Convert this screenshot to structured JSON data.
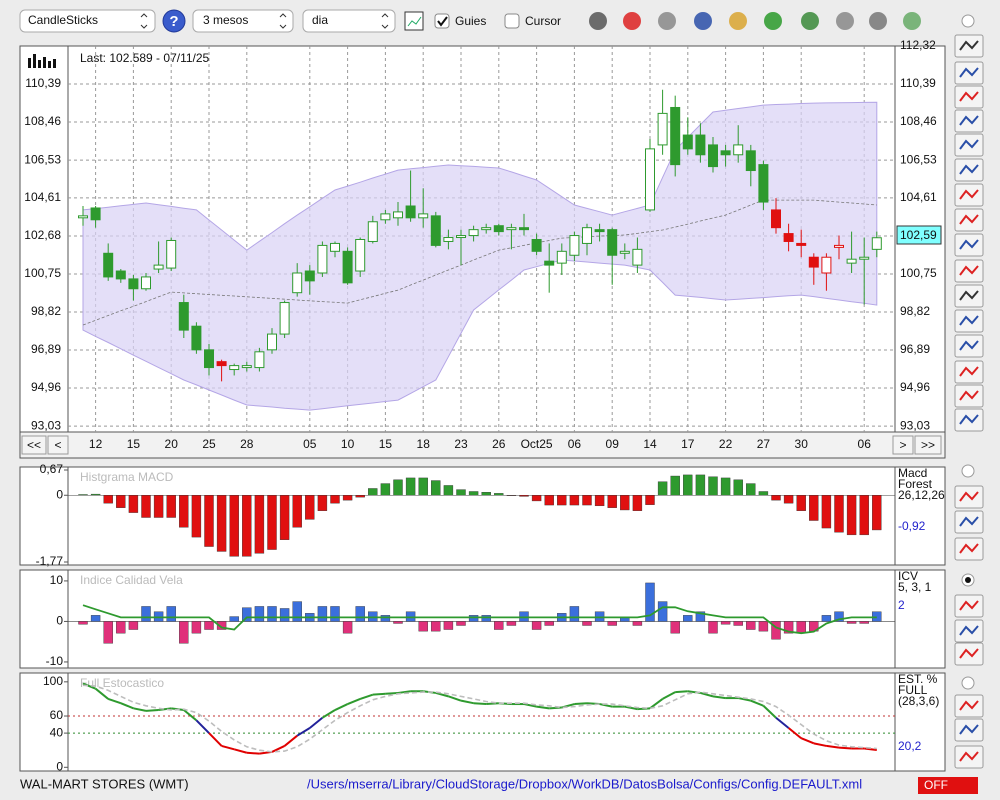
{
  "toolbar": {
    "chart_type": "CandleSticks",
    "help": "?",
    "period": "3 mesos",
    "interval": "dia",
    "guides": {
      "label": "Guies",
      "checked": true
    },
    "cursor": {
      "label": "Cursor",
      "checked": false
    }
  },
  "chart_data": [
    {
      "type": "candlestick",
      "last_text": "Last: 102.589 - 07/11/25",
      "price_box": "102,59",
      "nav_buttons": [
        "<<",
        "<",
        ">",
        ">>"
      ],
      "categories": [
        null,
        "12",
        null,
        null,
        "15",
        null,
        null,
        "20",
        null,
        null,
        "25",
        null,
        null,
        "28",
        null,
        null,
        null,
        null,
        "05",
        null,
        null,
        "10",
        null,
        null,
        "15",
        null,
        null,
        "18",
        null,
        null,
        "23",
        null,
        null,
        "26",
        null,
        null,
        "Oct25",
        null,
        null,
        "06",
        null,
        null,
        "09",
        null,
        null,
        "14",
        null,
        null,
        "17",
        null,
        null,
        "22",
        null,
        null,
        "27",
        null,
        null,
        "30",
        null,
        null,
        null,
        null,
        "06",
        null
      ],
      "open": [
        103.6,
        104.1,
        101.8,
        100.9,
        100.5,
        100.0,
        101.0,
        101.05,
        99.3,
        98.1,
        96.9,
        96.3,
        95.9,
        96.0,
        96.0,
        96.9,
        97.7,
        99.8,
        100.9,
        100.8,
        101.9,
        101.9,
        100.9,
        102.4,
        103.5,
        103.6,
        104.2,
        103.6,
        103.7,
        102.4,
        102.6,
        102.7,
        103.0,
        103.2,
        103.0,
        103.1,
        102.5,
        101.4,
        101.3,
        101.7,
        102.3,
        103.0,
        103.0,
        101.8,
        101.2,
        104.0,
        107.3,
        109.2,
        107.8,
        107.8,
        107.3,
        107.0,
        106.8,
        107.0,
        106.3,
        104.0,
        102.8,
        102.3,
        101.6,
        100.8,
        102.1,
        101.3,
        101.5,
        102.0
      ],
      "high": [
        104.2,
        104.2,
        102.3,
        101.0,
        100.7,
        100.8,
        102.4,
        102.6,
        99.7,
        98.3,
        97.2,
        96.4,
        96.2,
        96.3,
        97.0,
        98.0,
        99.4,
        101.3,
        101.2,
        102.4,
        102.4,
        102.1,
        102.6,
        103.7,
        104.0,
        104.4,
        106.0,
        105.1,
        103.9,
        103.0,
        103.0,
        103.2,
        103.3,
        103.3,
        103.3,
        103.8,
        102.8,
        102.3,
        102.3,
        102.9,
        103.3,
        103.3,
        103.1,
        102.3,
        102.6,
        107.6,
        110.1,
        109.8,
        108.7,
        108.4,
        107.7,
        107.3,
        108.3,
        107.3,
        106.5,
        104.6,
        103.3,
        103.0,
        101.8,
        101.8,
        102.7,
        102.9,
        102.6,
        102.9
      ],
      "low": [
        103.2,
        103.1,
        100.4,
        100.3,
        99.4,
        99.9,
        100.8,
        100.9,
        97.5,
        96.7,
        95.6,
        95.3,
        95.6,
        95.8,
        95.8,
        96.7,
        97.5,
        99.6,
        99.7,
        100.6,
        101.6,
        100.2,
        100.6,
        102.3,
        103.3,
        103.2,
        103.4,
        103.1,
        102.1,
        102.0,
        101.2,
        102.4,
        102.8,
        102.7,
        102.0,
        102.7,
        101.7,
        99.8,
        100.7,
        101.4,
        101.7,
        102.4,
        100.2,
        101.5,
        100.8,
        103.9,
        106.8,
        105.7,
        106.8,
        106.4,
        105.9,
        106.2,
        106.4,
        105.2,
        104.0,
        102.8,
        101.9,
        101.6,
        100.2,
        99.9,
        101.5,
        100.8,
        99.2,
        101.6
      ],
      "close": [
        103.7,
        103.5,
        100.6,
        100.5,
        100.0,
        100.6,
        101.2,
        102.45,
        97.9,
        96.9,
        96.0,
        96.1,
        96.1,
        96.1,
        96.8,
        97.7,
        99.3,
        100.8,
        100.4,
        102.2,
        102.3,
        100.3,
        102.5,
        103.4,
        103.8,
        103.9,
        103.6,
        103.8,
        102.2,
        102.6,
        102.7,
        103.0,
        103.1,
        102.9,
        103.1,
        103.0,
        101.9,
        101.2,
        101.9,
        102.7,
        103.1,
        102.9,
        101.7,
        101.9,
        102.0,
        107.1,
        108.9,
        106.3,
        107.1,
        106.8,
        106.2,
        106.8,
        107.3,
        106.0,
        104.4,
        103.1,
        102.4,
        102.2,
        101.1,
        101.6,
        102.2,
        101.5,
        101.6,
        102.589
      ],
      "colors": [
        "#2e9a2e",
        "#2e9a2e",
        "#2e9a2e",
        "#2e9a2e",
        "#2e9a2e",
        "#2e9a2e",
        "#2e9a2e",
        "#2e9a2e",
        "#2e9a2e",
        "#2e9a2e",
        "#2e9a2e",
        "#e01010",
        "#2e9a2e",
        "#2e9a2e",
        "#2e9a2e",
        "#2e9a2e",
        "#2e9a2e",
        "#2e9a2e",
        "#2e9a2e",
        "#2e9a2e",
        "#2e9a2e",
        "#2e9a2e",
        "#2e9a2e",
        "#2e9a2e",
        "#2e9a2e",
        "#2e9a2e",
        "#2e9a2e",
        "#2e9a2e",
        "#2e9a2e",
        "#2e9a2e",
        "#2e9a2e",
        "#2e9a2e",
        "#2e9a2e",
        "#2e9a2e",
        "#2e9a2e",
        "#2e9a2e",
        "#2e9a2e",
        "#2e9a2e",
        "#2e9a2e",
        "#2e9a2e",
        "#2e9a2e",
        "#2e9a2e",
        "#2e9a2e",
        "#2e9a2e",
        "#2e9a2e",
        "#2e9a2e",
        "#2e9a2e",
        "#2e9a2e",
        "#2e9a2e",
        "#2e9a2e",
        "#2e9a2e",
        "#2e9a2e",
        "#2e9a2e",
        "#2e9a2e",
        "#2e9a2e",
        "#e01010",
        "#e01010",
        "#e01010",
        "#e01010",
        "#e01010",
        "#e01010",
        "#2e9a2e",
        "#2e9a2e",
        "#2e9a2e"
      ],
      "band_upper": [
        104.0,
        104.07,
        104.14,
        104.21,
        104.28,
        104.35,
        104.26,
        104.18,
        104.09,
        104.0,
        103.49,
        102.98,
        102.47,
        101.96,
        102.41,
        102.85,
        103.3,
        103.74,
        104.16,
        104.59,
        105.01,
        105.21,
        105.41,
        105.62,
        105.82,
        106.02,
        106.09,
        106.15,
        106.22,
        106.28,
        106.24,
        106.21,
        106.17,
        106.13,
        105.93,
        105.72,
        105.52,
        105.1,
        104.67,
        104.25,
        104.08,
        103.91,
        103.74,
        103.91,
        104.08,
        104.25,
        105.65,
        107.04,
        107.68,
        108.33,
        108.97,
        109.06,
        109.15,
        109.23,
        109.32,
        109.35,
        109.37,
        109.4,
        109.42,
        109.43,
        109.44,
        109.45,
        109.46,
        109.47
      ],
      "band_lower": [
        97.9,
        97.58,
        97.27,
        96.95,
        96.63,
        96.32,
        96.0,
        95.69,
        95.37,
        95.12,
        94.86,
        94.61,
        94.35,
        94.1,
        94.05,
        94.0,
        93.94,
        93.89,
        93.84,
        93.91,
        93.99,
        94.06,
        94.13,
        94.2,
        94.28,
        94.35,
        94.69,
        95.03,
        95.37,
        96.55,
        97.74,
        98.92,
        99.43,
        99.94,
        100.44,
        100.95,
        101.12,
        101.29,
        101.46,
        101.41,
        101.36,
        101.3,
        101.25,
        101.2,
        101.08,
        100.95,
        100.32,
        99.68,
        99.62,
        99.56,
        99.49,
        99.43,
        99.47,
        99.51,
        99.55,
        99.6,
        99.64,
        99.68,
        99.6,
        99.51,
        99.43,
        99.34,
        99.26,
        99.17
      ],
      "moving_average": [
        98.16,
        98.4,
        98.64,
        98.88,
        99.11,
        99.35,
        99.59,
        99.83,
        99.79,
        99.75,
        99.71,
        99.67,
        99.63,
        99.59,
        99.55,
        99.51,
        99.47,
        99.43,
        99.39,
        99.35,
        99.31,
        99.27,
        99.44,
        99.6,
        99.77,
        99.93,
        100.19,
        100.44,
        100.7,
        100.95,
        101.2,
        101.46,
        101.71,
        101.96,
        102.08,
        102.2,
        102.33,
        102.45,
        102.57,
        102.6,
        102.64,
        102.67,
        102.7,
        102.73,
        102.81,
        102.9,
        102.98,
        103.13,
        103.28,
        103.44,
        103.59,
        103.74,
        103.99,
        104.25,
        104.5,
        104.5,
        104.5,
        104.5,
        104.5,
        104.45,
        104.4,
        104.35,
        104.3,
        104.25
      ],
      "band_color": "#d9d1f5",
      "band_line_color": "#b4a6e6",
      "average_color": "#777777",
      "ylim": [
        92.73,
        112.32
      ],
      "yticks": [
        {
          "value": 93.03,
          "label": "93,03"
        },
        {
          "value": 94.96,
          "label": "94,96"
        },
        {
          "value": 96.89,
          "label": "96,89"
        },
        {
          "value": 98.82,
          "label": "98,82"
        },
        {
          "value": 100.75,
          "label": "100,75"
        },
        {
          "value": 102.68,
          "label": "102,68"
        },
        {
          "value": 104.61,
          "label": "104,61"
        },
        {
          "value": 106.53,
          "label": "106,53"
        },
        {
          "value": 108.46,
          "label": "108,46"
        },
        {
          "value": 110.39,
          "label": "110,39"
        },
        {
          "value": 112.32,
          "label": "112,32"
        }
      ],
      "grid": true
    },
    {
      "type": "bar",
      "title": "Histgrama MACD",
      "legend": [
        "Macd",
        "Forest",
        "26,12,26"
      ],
      "value_text": "-0,92",
      "values": [
        0.02,
        0.03,
        -0.21,
        -0.33,
        -0.46,
        -0.59,
        -0.59,
        -0.59,
        -0.85,
        -1.11,
        -1.36,
        -1.49,
        -1.62,
        -1.62,
        -1.54,
        -1.44,
        -1.18,
        -0.85,
        -0.64,
        -0.41,
        -0.21,
        -0.13,
        -0.05,
        0.18,
        0.31,
        0.41,
        0.46,
        0.46,
        0.39,
        0.26,
        0.15,
        0.1,
        0.08,
        0.05,
        -0.01,
        -0.03,
        -0.15,
        -0.26,
        -0.26,
        -0.26,
        -0.26,
        -0.28,
        -0.33,
        -0.39,
        -0.41,
        -0.25,
        0.36,
        0.51,
        0.54,
        0.54,
        0.49,
        0.46,
        0.41,
        0.31,
        0.1,
        -0.13,
        -0.21,
        -0.41,
        -0.67,
        -0.87,
        -0.98,
        -1.05,
        -1.05,
        -0.92
      ],
      "pos_color": "#2e9a2e",
      "neg_color": "#e01010",
      "ylim": [
        -1.77,
        0.67
      ],
      "yticks": [
        {
          "value": -1.77,
          "label": "-1,77"
        },
        0,
        {
          "value": 0.67,
          "label": "0,67"
        }
      ]
    },
    {
      "type": "bar_line",
      "title": "Indice Calidad Vela",
      "legend": [
        "ICV",
        "5, 3, 1"
      ],
      "value_text": "2",
      "values": [
        -0.7,
        1.5,
        -5.4,
        -2.9,
        -2.0,
        3.7,
        2.4,
        3.7,
        -5.4,
        -2.9,
        -2.0,
        -2.0,
        1.2,
        3.4,
        3.7,
        3.7,
        3.2,
        4.9,
        2.0,
        3.7,
        3.7,
        -2.9,
        3.7,
        2.4,
        1.5,
        -0.5,
        2.4,
        -2.4,
        -2.4,
        -2.0,
        -1.0,
        1.5,
        1.5,
        -2.0,
        -1.0,
        2.4,
        -2.0,
        -1.0,
        2.0,
        3.7,
        -1.0,
        2.4,
        -1.0,
        1.0,
        -1.0,
        9.5,
        4.9,
        -2.9,
        1.5,
        2.4,
        -2.9,
        -0.7,
        -1.0,
        -2.0,
        -2.4,
        -4.4,
        -2.9,
        -2.9,
        -2.4,
        1.5,
        2.4,
        -0.5,
        -0.5,
        2.4
      ],
      "pos_color": "#3b6fdc",
      "neg_color": "#e0307a",
      "line": {
        "color": "#2e9a2e",
        "values": [
          4.0,
          3.0,
          2.0,
          1.0,
          1.0,
          1.0,
          1.0,
          1.0,
          1.0,
          1.0,
          1.0,
          -1.5,
          -2.0,
          1.0,
          1.0,
          1.0,
          1.0,
          1.0,
          1.0,
          1.0,
          1.0,
          1.0,
          1.0,
          1.0,
          1.0,
          1.0,
          1.0,
          1.0,
          1.0,
          1.0,
          1.0,
          1.0,
          1.0,
          1.0,
          1.0,
          1.0,
          1.0,
          1.0,
          1.0,
          1.0,
          1.0,
          1.0,
          1.0,
          1.0,
          1.0,
          1.5,
          3.5,
          3.5,
          2.5,
          2.0,
          1.5,
          1.0,
          1.0,
          1.0,
          1.0,
          -1.5,
          -2.5,
          -2.9,
          -2.5,
          -0.5,
          0.5,
          1.0,
          1.0,
          1.0
        ]
      },
      "ylim": [
        -11,
        12.2
      ],
      "yticks": [
        -10,
        0,
        10
      ]
    },
    {
      "type": "line",
      "title": "Full Estocastico",
      "legend": [
        "EST. %",
        "FULL",
        "(28,3,6)"
      ],
      "value_text": "20,2",
      "levels": [
        {
          "value": 60,
          "color": "#c03030"
        },
        {
          "value": 40,
          "color": "#2e8a2e"
        }
      ],
      "series": [
        {
          "colors": {
            "above": "#2e9a2e",
            "mid": "#22229a",
            "below": "#e00000"
          },
          "values": [
            98,
            92,
            80,
            75,
            69,
            66,
            67,
            69,
            67,
            55,
            40,
            25,
            21,
            17,
            16,
            18,
            25,
            37,
            46,
            58,
            67,
            74,
            80,
            85,
            86,
            87,
            89,
            89,
            87,
            83,
            78,
            75,
            74,
            75,
            74,
            74,
            71,
            69,
            70,
            74,
            75,
            74,
            71,
            71,
            68,
            69,
            80,
            88,
            89,
            87,
            83,
            81,
            81,
            78,
            72,
            58,
            46,
            34,
            28,
            25,
            23,
            22,
            22,
            20.2
          ]
        },
        {
          "color": "#bdbdbd",
          "dashed": true,
          "values": [
            96,
            95,
            90,
            83,
            76,
            72,
            69,
            67,
            68,
            64,
            54,
            42,
            32,
            24,
            20,
            18,
            19,
            24,
            33,
            44,
            55,
            64,
            72,
            79,
            83,
            86,
            87,
            88,
            88,
            86,
            83,
            80,
            77,
            75,
            75,
            75,
            73,
            72,
            70,
            71,
            73,
            74,
            74,
            72,
            70,
            69,
            72,
            79,
            86,
            88,
            86,
            84,
            82,
            80,
            77,
            71,
            61,
            50,
            39,
            31,
            26,
            24,
            23,
            22
          ]
        }
      ],
      "ylim": [
        -2,
        108
      ],
      "yticks": [
        0,
        40,
        60,
        100
      ]
    }
  ],
  "footer": {
    "symbol": "WAL-MART STORES (WMT)",
    "config_path": "/Users/mserra/Library/CloudStorage/Dropbox/WorkDB/DatosBolsa/Configs/Config.DEFAULT.xml",
    "status": "OFF"
  }
}
